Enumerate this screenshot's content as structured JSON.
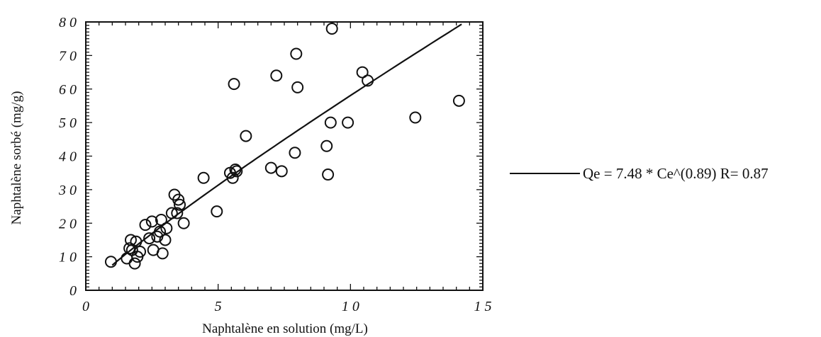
{
  "chart_data": {
    "type": "scatter",
    "xlabel": "Naphtalène en solution (mg/L)",
    "ylabel": "Naphtalène sorbé (mg/g)",
    "xlim": [
      0,
      15
    ],
    "ylim": [
      0,
      80
    ],
    "x_ticks": [
      "0",
      "5",
      "1 0",
      "1 5"
    ],
    "y_ticks": [
      "0",
      "1 0",
      "2 0",
      "3 0",
      "4 0",
      "5 0",
      "6 0",
      "7 0",
      "8 0"
    ],
    "grid": false,
    "legend_position": "right",
    "series": [
      {
        "marker": "open-circle",
        "points": [
          [
            0.95,
            8.5
          ],
          [
            1.55,
            9.5
          ],
          [
            1.65,
            12.5
          ],
          [
            1.7,
            15
          ],
          [
            1.75,
            12
          ],
          [
            1.85,
            8
          ],
          [
            1.9,
            14.5
          ],
          [
            1.95,
            10
          ],
          [
            2.05,
            11.5
          ],
          [
            2.25,
            19.5
          ],
          [
            2.4,
            15.5
          ],
          [
            2.5,
            20.5
          ],
          [
            2.55,
            12
          ],
          [
            2.7,
            16
          ],
          [
            2.8,
            17.5
          ],
          [
            2.85,
            21
          ],
          [
            2.9,
            11
          ],
          [
            3.0,
            15
          ],
          [
            3.05,
            18.5
          ],
          [
            3.25,
            23
          ],
          [
            3.35,
            28.5
          ],
          [
            3.45,
            23
          ],
          [
            3.5,
            27
          ],
          [
            3.55,
            25.5
          ],
          [
            3.7,
            20
          ],
          [
            4.45,
            33.5
          ],
          [
            4.95,
            23.5
          ],
          [
            5.45,
            35
          ],
          [
            5.55,
            33.5
          ],
          [
            5.6,
            61.5
          ],
          [
            5.65,
            36
          ],
          [
            5.7,
            35.5
          ],
          [
            6.05,
            46
          ],
          [
            7.0,
            36.5
          ],
          [
            7.2,
            64
          ],
          [
            7.4,
            35.5
          ],
          [
            7.9,
            41
          ],
          [
            7.95,
            70.5
          ],
          [
            8.0,
            60.5
          ],
          [
            9.1,
            43
          ],
          [
            9.15,
            34.5
          ],
          [
            9.25,
            50
          ],
          [
            9.3,
            78
          ],
          [
            9.9,
            50
          ],
          [
            10.45,
            65
          ],
          [
            10.65,
            62.5
          ],
          [
            12.45,
            51.5
          ],
          [
            14.1,
            56.5
          ]
        ]
      },
      {
        "name": "Qe = 7.48 * Ce^(0.89) R= 0.87",
        "marker": "line",
        "fit": {
          "a": 7.48,
          "b": 0.89,
          "x_from": 1.0,
          "x_to": 14.2
        }
      }
    ]
  }
}
